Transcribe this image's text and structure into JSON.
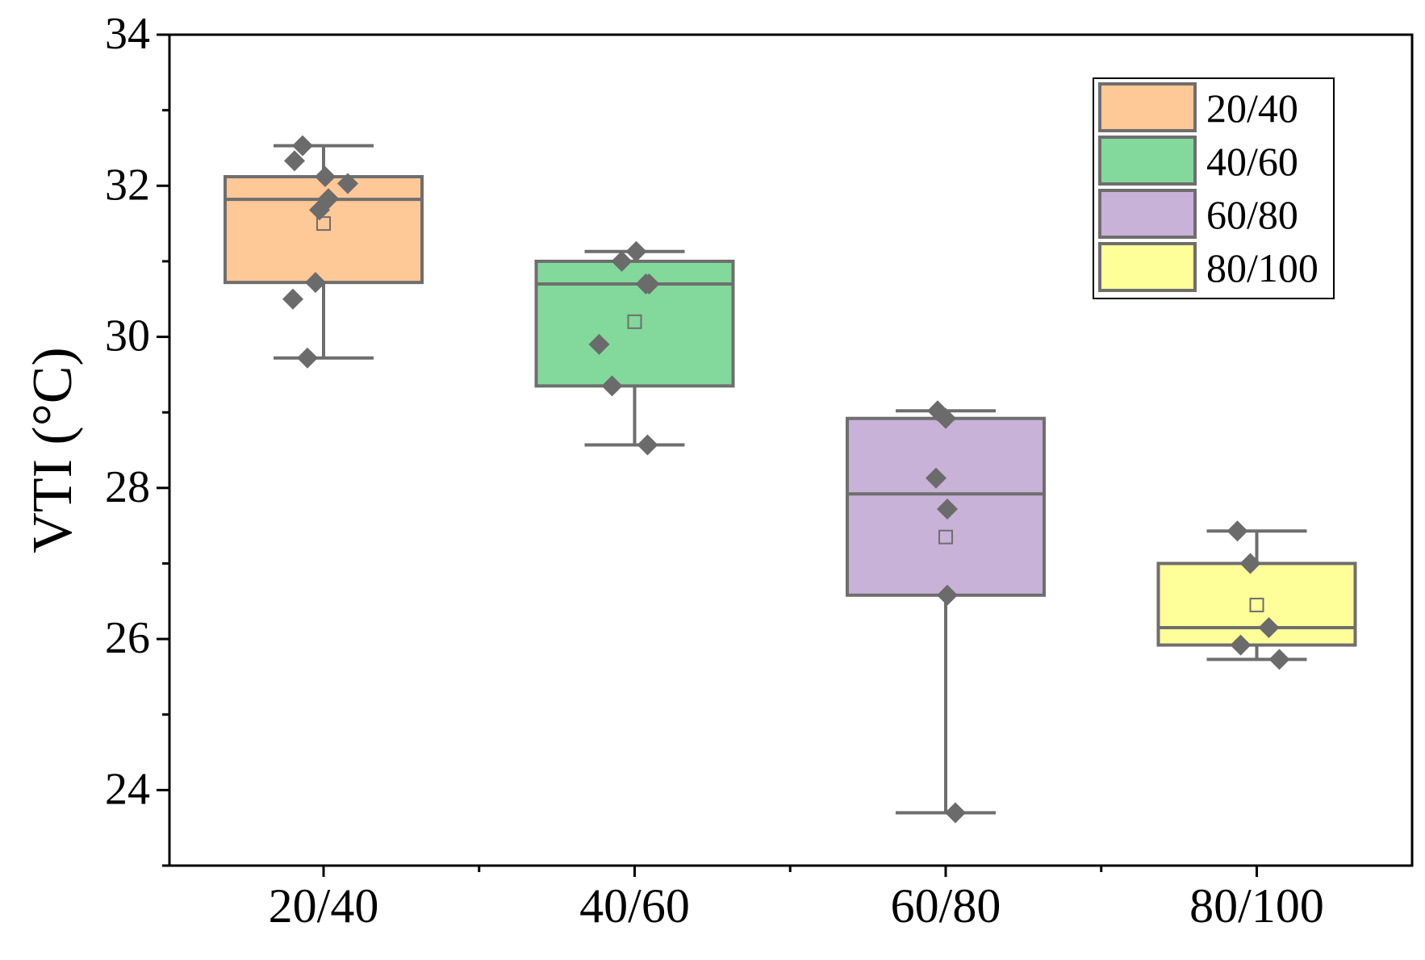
{
  "chart_data": {
    "type": "box",
    "title": "",
    "xlabel": "",
    "ylabel": "VTI (°C)",
    "ylim": [
      23,
      34
    ],
    "yticks": [
      24,
      26,
      28,
      30,
      32,
      34
    ],
    "categories": [
      "20/40",
      "40/60",
      "60/80",
      "80/100"
    ],
    "grid": false,
    "legend": {
      "placement": "top-right",
      "entries": [
        "20/40",
        "40/60",
        "60/80",
        "80/100"
      ]
    },
    "colors": {
      "20/40": "#FFC896",
      "40/60": "#82D99B",
      "60/80": "#C8B2D8",
      "80/100": "#FFFF99",
      "outline": "#6E6E6E",
      "points": "#6B6B6B"
    },
    "series": [
      {
        "name": "20/40",
        "whisker_low": 29.72,
        "q1": 30.72,
        "median": 31.82,
        "q3": 32.12,
        "whisker_high": 32.53,
        "mean": 31.5,
        "points": [
          32.53,
          32.33,
          32.12,
          32.03,
          31.83,
          31.68,
          30.72,
          30.5,
          29.72
        ]
      },
      {
        "name": "40/60",
        "whisker_low": 28.57,
        "q1": 29.35,
        "median": 30.7,
        "q3": 31.0,
        "whisker_high": 31.13,
        "mean": 30.2,
        "points": [
          31.13,
          31.0,
          30.7,
          30.7,
          29.9,
          29.35,
          28.57
        ]
      },
      {
        "name": "60/80",
        "whisker_low": 23.7,
        "q1": 26.58,
        "median": 27.92,
        "q3": 28.92,
        "whisker_high": 29.02,
        "mean": 27.35,
        "points": [
          29.02,
          28.92,
          28.13,
          27.72,
          26.58,
          23.7
        ]
      },
      {
        "name": "80/100",
        "whisker_low": 25.73,
        "q1": 25.92,
        "median": 26.15,
        "q3": 27.0,
        "whisker_high": 27.43,
        "mean": 26.45,
        "points": [
          27.43,
          27.0,
          26.15,
          25.92,
          25.73
        ]
      }
    ]
  }
}
